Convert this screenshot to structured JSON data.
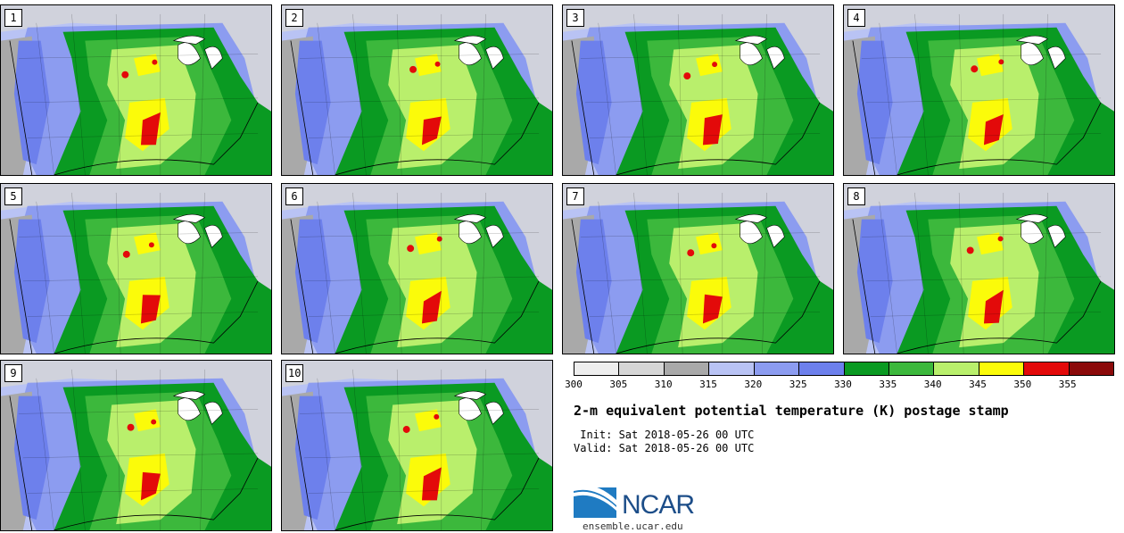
{
  "title": "2-m equivalent potential temperature (K) postage stamp",
  "init": " Init: Sat 2018-05-26 00 UTC",
  "valid": "Valid: Sat 2018-05-26 00 UTC",
  "logo_text": "NCAR",
  "site": "ensemble.ucar.edu",
  "members": [
    "1",
    "2",
    "3",
    "4",
    "5",
    "6",
    "7",
    "8",
    "9",
    "10"
  ],
  "colorbar": {
    "ticks": [
      "300",
      "305",
      "310",
      "315",
      "320",
      "325",
      "330",
      "335",
      "340",
      "345",
      "350",
      "355"
    ],
    "colors": [
      "#eeeeee",
      "#d6d6d6",
      "#a9a9a9",
      "#b9c3f4",
      "#8c9cf0",
      "#6d80ec",
      "#0a9a22",
      "#3cb83c",
      "#b9ef6c",
      "#fbfb0a",
      "#e30a0a",
      "#8b0a0a"
    ]
  },
  "colors": {
    "ocean": "#b9c3f4",
    "cold_land": "#8c9cf0",
    "dry_west": "#a9a9a9",
    "lakes": "#ffffff",
    "canada_snow": "#d6d6d6"
  }
}
